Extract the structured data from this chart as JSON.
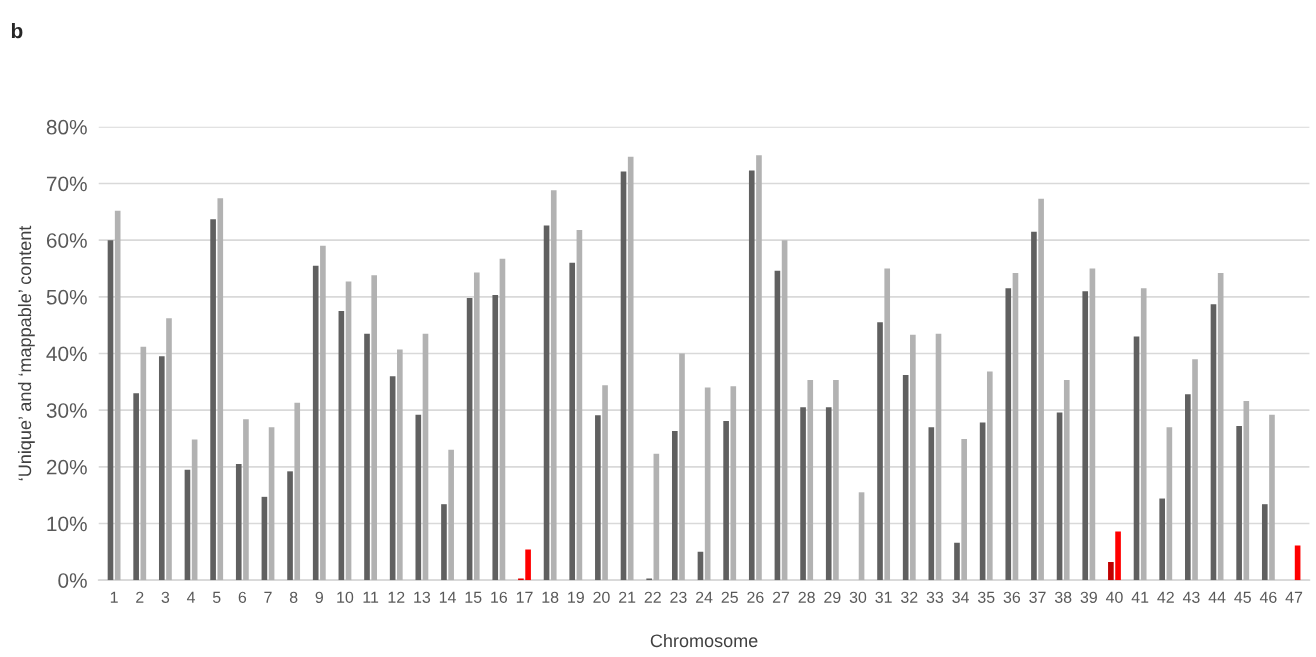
{
  "chart_data": {
    "type": "bar",
    "title": "b",
    "xlabel": "Chromosome",
    "ylabel": "‘Unique’ and ‘mappable’ content",
    "categories": [
      "1",
      "2",
      "3",
      "4",
      "5",
      "6",
      "7",
      "8",
      "9",
      "10",
      "11",
      "12",
      "13",
      "14",
      "15",
      "16",
      "17",
      "18",
      "19",
      "20",
      "21",
      "22",
      "23",
      "24",
      "25",
      "26",
      "27",
      "28",
      "29",
      "30",
      "31",
      "32",
      "33",
      "34",
      "35",
      "36",
      "37",
      "38",
      "39",
      "40",
      "41",
      "42",
      "43",
      "44",
      "45",
      "46",
      "47"
    ],
    "series": [
      {
        "color": "#606060",
        "colors": [
          null,
          null,
          null,
          null,
          null,
          null,
          null,
          null,
          null,
          null,
          null,
          null,
          null,
          null,
          null,
          null,
          "#e00000",
          null,
          null,
          null,
          null,
          null,
          null,
          null,
          null,
          null,
          null,
          null,
          null,
          null,
          null,
          null,
          null,
          null,
          null,
          null,
          null,
          null,
          null,
          "#c00000",
          null,
          null,
          null,
          null,
          null,
          null,
          "#c00000"
        ],
        "values": [
          60,
          33,
          39.5,
          19.5,
          63.7,
          20.5,
          14.7,
          19.2,
          55.5,
          47.5,
          43.5,
          36,
          29.2,
          13.4,
          49.8,
          50.3,
          0.3,
          62.6,
          56,
          29.1,
          72.1,
          0.3,
          26.3,
          5,
          28.1,
          72.3,
          54.6,
          30.5,
          30.5,
          0,
          45.5,
          36.2,
          27,
          6.6,
          27.8,
          51.5,
          61.5,
          29.6,
          51,
          3.2,
          43,
          14.4,
          32.8,
          48.7,
          27.2,
          13.4,
          0
        ]
      },
      {
        "color": "#b2b2b2",
        "colors": [
          null,
          null,
          null,
          null,
          null,
          null,
          null,
          null,
          null,
          null,
          null,
          null,
          null,
          null,
          null,
          null,
          "#ff0000",
          null,
          null,
          null,
          null,
          null,
          null,
          null,
          null,
          null,
          null,
          null,
          null,
          null,
          null,
          null,
          null,
          null,
          null,
          null,
          null,
          null,
          null,
          "#ff0000",
          null,
          null,
          null,
          null,
          null,
          null,
          "#ff0000"
        ],
        "values": [
          65.2,
          41.2,
          46.2,
          24.8,
          67.4,
          28.4,
          27,
          31.3,
          59,
          52.7,
          53.8,
          40.7,
          43.5,
          23,
          54.3,
          56.7,
          5.4,
          68.8,
          61.8,
          34.4,
          74.7,
          22.3,
          40,
          34,
          34.2,
          75,
          60,
          35.3,
          35.3,
          15.5,
          55,
          43.3,
          43.5,
          24.9,
          36.8,
          54.2,
          67.3,
          35.3,
          55,
          8.6,
          51.5,
          27,
          39,
          54.2,
          31.6,
          29.2,
          6.1
        ]
      }
    ],
    "ylim": [
      0,
      80
    ],
    "yticks": [
      {
        "value": 0,
        "label": "0%"
      },
      {
        "value": 10,
        "label": "10%"
      },
      {
        "value": 20,
        "label": "20%"
      },
      {
        "value": 30,
        "label": "30%"
      },
      {
        "value": 40,
        "label": "40%"
      },
      {
        "value": 50,
        "label": "50%"
      },
      {
        "value": 60,
        "label": "60%"
      },
      {
        "value": 70,
        "label": "70%"
      },
      {
        "value": 80,
        "label": "80%"
      }
    ],
    "grid": "y"
  }
}
